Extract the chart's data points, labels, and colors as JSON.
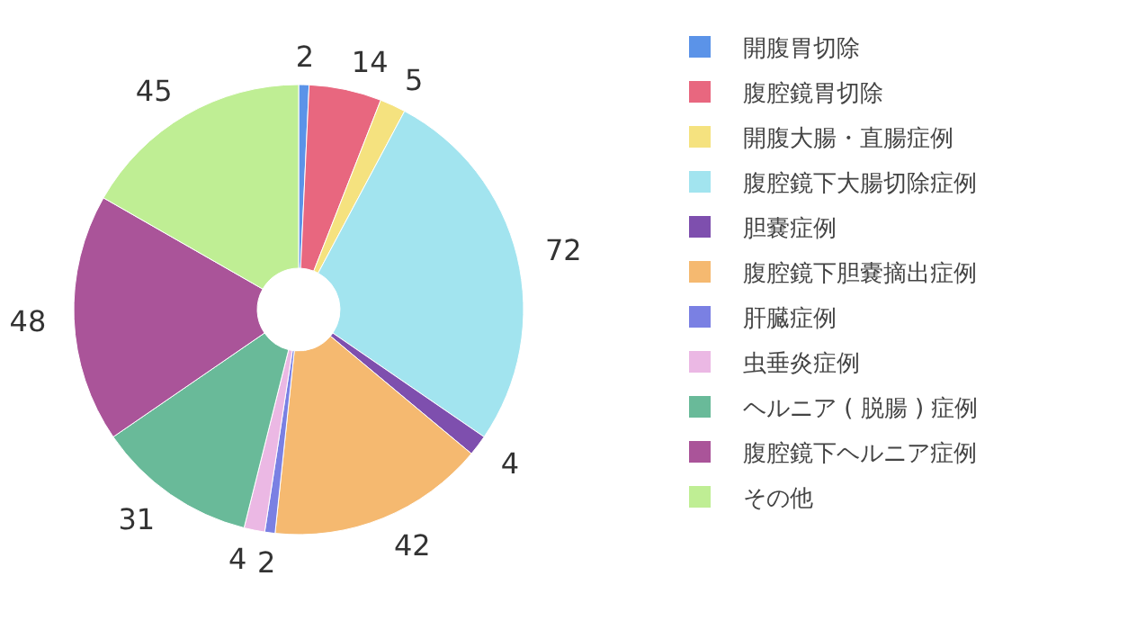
{
  "chart_data": {
    "type": "donut",
    "categories": [
      "開腹胃切除",
      "腹腔鏡胃切除",
      "開腹大腸・直腸症例",
      "腹腔鏡下大腸切除症例",
      "胆嚢症例",
      "腹腔鏡下胆嚢摘出症例",
      "肝臓症例",
      "虫垂炎症例",
      "ヘルニア ( 脱腸 ) 症例",
      "腹腔鏡下ヘルニア症例",
      "その他"
    ],
    "values": [
      2,
      14,
      5,
      72,
      4,
      42,
      2,
      4,
      31,
      48,
      45
    ],
    "colors": [
      "#5b93e8",
      "#e8677f",
      "#f5e27f",
      "#a2e4ef",
      "#7e4fae",
      "#f5b970",
      "#7a80e3",
      "#ebb8e4",
      "#69ba99",
      "#aa5499",
      "#bfee94"
    ],
    "data_labels": true,
    "legend": "right"
  }
}
